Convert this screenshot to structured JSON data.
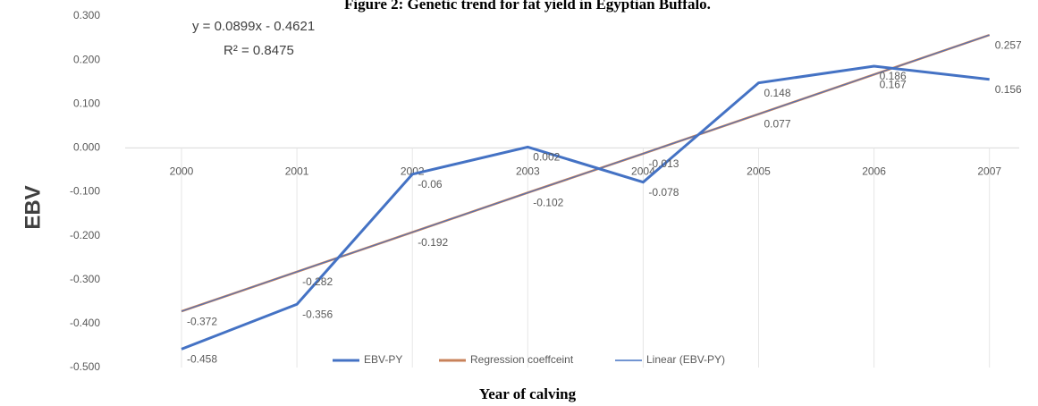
{
  "chart_data": {
    "type": "line",
    "title": "Figure 2: Genetic trend for fat yield in Egyptian Buffalo.",
    "x_label": "Year of calving",
    "y_label": "EBV",
    "annotations": [
      "y = 0.0899x - 0.4621",
      "R² = 0.8475"
    ],
    "categories": [
      "2000",
      "2001",
      "2002",
      "2003",
      "2004",
      "2005",
      "2006",
      "2007"
    ],
    "series": [
      {
        "name": "EBV-PY",
        "color": "#4472c4",
        "values": [
          -0.458,
          -0.356,
          -0.06,
          0.002,
          -0.078,
          0.148,
          0.186,
          0.156
        ]
      },
      {
        "name": "Regression coeffceint",
        "color": "#c8825a",
        "values": [
          -0.372,
          -0.282,
          -0.192,
          -0.102,
          -0.013,
          0.077,
          0.167,
          0.257
        ]
      },
      {
        "name": "Linear (EBV-PY)",
        "color": "#4472c4",
        "values": [
          -0.372,
          -0.282,
          -0.192,
          -0.102,
          -0.013,
          0.077,
          0.167,
          0.257
        ]
      }
    ],
    "ylim": [
      -0.5,
      0.3
    ],
    "yticks": [
      {
        "value": 0.3,
        "label": "0.300"
      },
      {
        "value": 0.2,
        "label": "0.200"
      },
      {
        "value": 0.1,
        "label": "0.100"
      },
      {
        "value": 0,
        "label": "0.000"
      },
      {
        "value": -0.1,
        "label": "-0.100"
      },
      {
        "value": -0.2,
        "label": "-0.200"
      },
      {
        "value": -0.3,
        "label": "-0.300"
      },
      {
        "value": -0.4,
        "label": "-0.400"
      },
      {
        "value": -0.5,
        "label": "-0.500"
      }
    ],
    "legend": "bottom"
  }
}
